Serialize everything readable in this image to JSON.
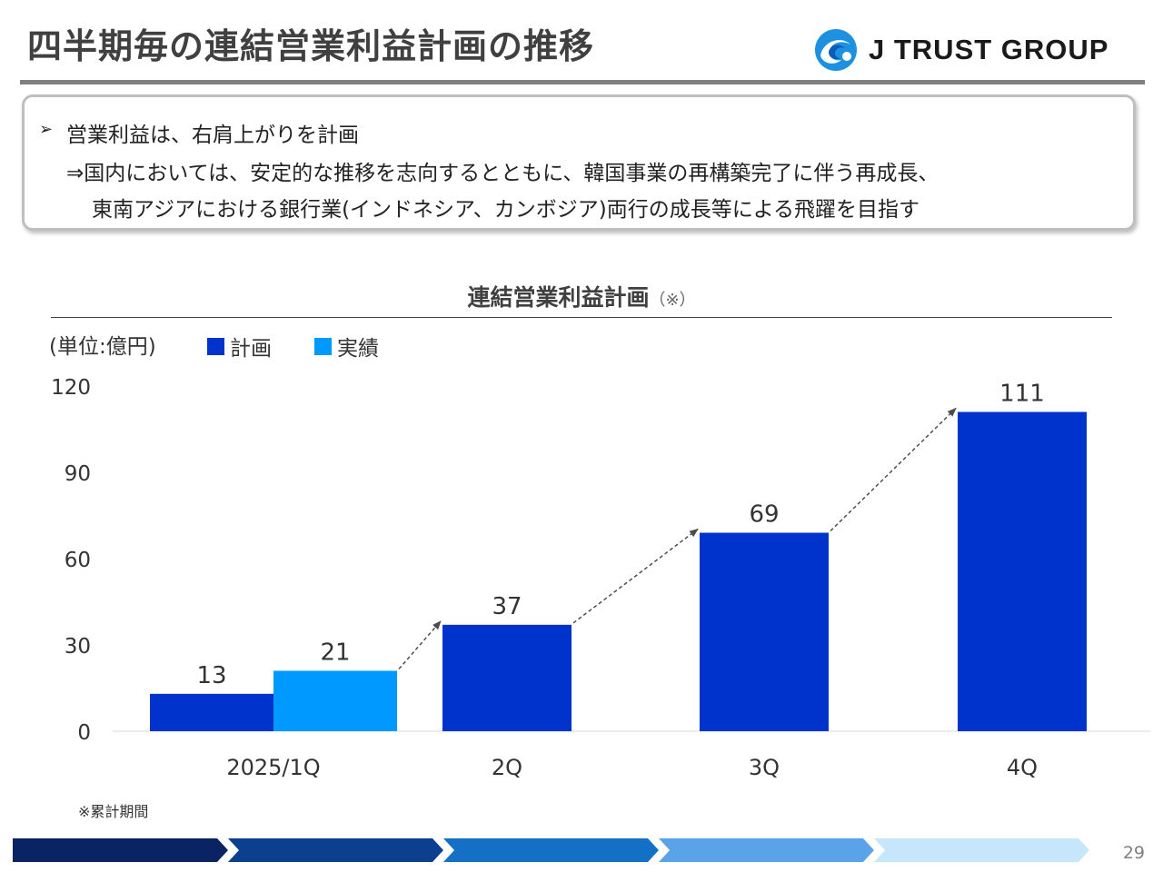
{
  "header": {
    "title": "四半期毎の連結営業利益計画の推移",
    "logo_text": "J TRUST GROUP"
  },
  "callout": {
    "bullet": "➢",
    "line1": "営業利益は、右肩上がりを計画",
    "line2": "⇒国内においては、安定的な推移を志向するとともに、韓国事業の再構築完了に伴う再成長、",
    "line3": "東南アジアにおける銀行業(インドネシア、カンボジア)両行の成長等による飛躍を目指す"
  },
  "chart_data": {
    "type": "bar",
    "title": "連結営業利益計画",
    "title_note": "（※）",
    "unit_label": "(単位:億円)",
    "categories": [
      "2025/1Q",
      "2Q",
      "3Q",
      "4Q"
    ],
    "series": [
      {
        "name": "計画",
        "color": "#0033cc",
        "values": [
          13,
          37,
          69,
          111
        ]
      },
      {
        "name": "実績",
        "color": "#0099ff",
        "values": [
          21,
          null,
          null,
          null
        ]
      }
    ],
    "ylim": [
      0,
      120
    ],
    "yticks": [
      0,
      30,
      60,
      90,
      120
    ],
    "ytick_labels": [
      "0",
      "30",
      "60",
      "90",
      "120"
    ],
    "grid": false,
    "legend": "top-left",
    "trend_arrows": true
  },
  "footnote": "※累計期間",
  "page_number": "29",
  "footer_colors": [
    "#0a2463",
    "#0d3f8f",
    "#1470c4",
    "#5aa3e8",
    "#c5e6fb"
  ]
}
